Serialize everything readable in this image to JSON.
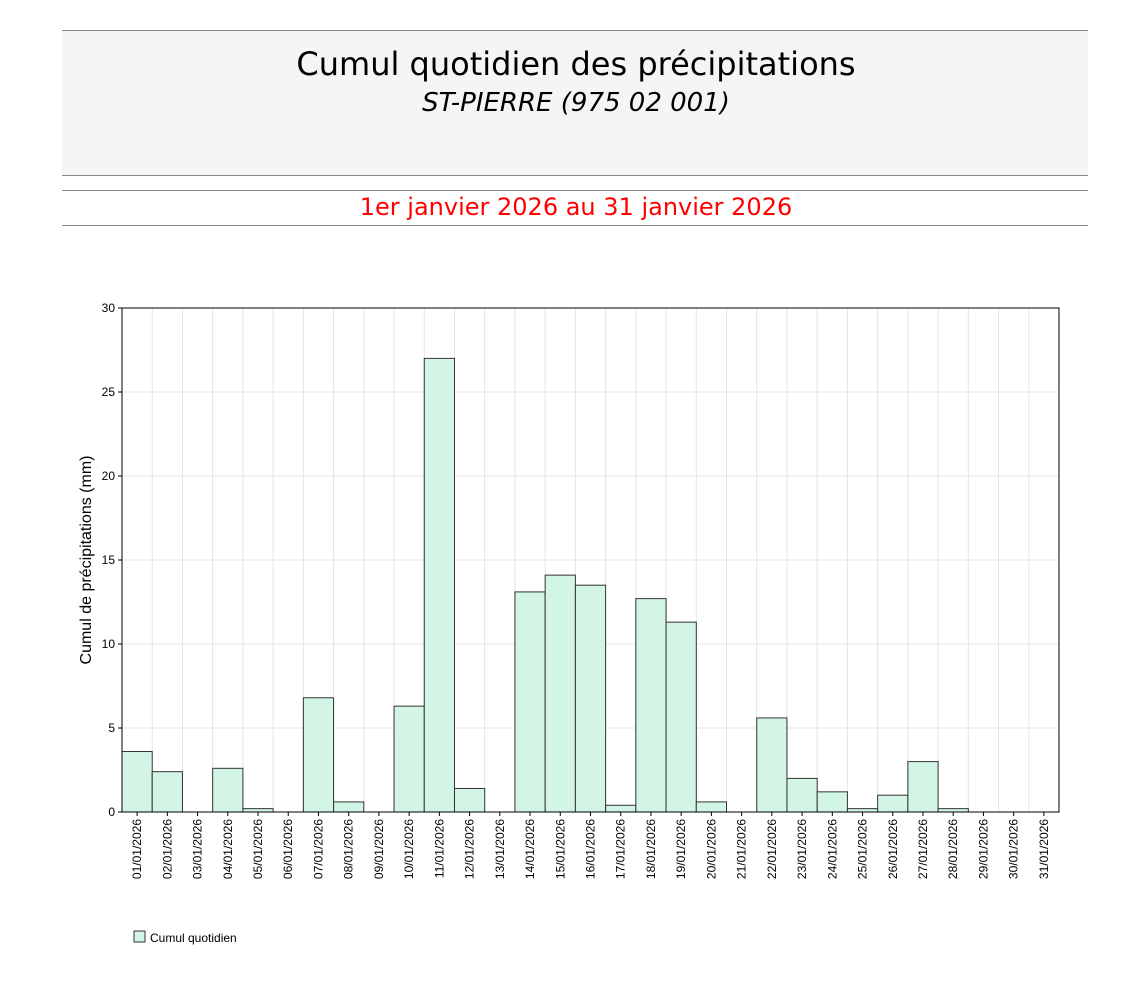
{
  "chart_data": {
    "type": "bar",
    "title": "Cumul quotidien des précipitations",
    "subtitle": "ST-PIERRE (975 02 001)",
    "period": "1er janvier 2026 au 31 janvier 2026",
    "y_label": "Cumul de précipitations (mm)",
    "categories": [
      "01/01/2026",
      "02/01/2026",
      "03/01/2026",
      "04/01/2026",
      "05/01/2026",
      "06/01/2026",
      "07/01/2026",
      "08/01/2026",
      "09/01/2026",
      "10/01/2026",
      "11/01/2026",
      "12/01/2026",
      "13/01/2026",
      "14/01/2026",
      "15/01/2026",
      "16/01/2026",
      "17/01/2026",
      "18/01/2026",
      "19/01/2026",
      "20/01/2026",
      "21/01/2026",
      "22/01/2026",
      "23/01/2026",
      "24/01/2026",
      "25/01/2026",
      "26/01/2026",
      "27/01/2026",
      "28/01/2026",
      "29/01/2026",
      "30/01/2026",
      "31/01/2026"
    ],
    "series": [
      {
        "name": "Cumul quotidien",
        "color": "#d2f5e6",
        "values": [
          3.6,
          2.4,
          0,
          2.6,
          0.2,
          0,
          6.8,
          0.6,
          0,
          6.3,
          27.0,
          1.4,
          0,
          13.1,
          14.1,
          13.5,
          0.4,
          12.7,
          11.3,
          0.6,
          0,
          5.6,
          2.0,
          1.2,
          0.2,
          1.0,
          3.0,
          0.2,
          0,
          0,
          0
        ]
      }
    ],
    "ylim": [
      0,
      30
    ],
    "yticks": [
      0,
      5,
      10,
      15,
      20,
      25,
      30
    ],
    "grid": true,
    "legend": "bottom-left"
  }
}
